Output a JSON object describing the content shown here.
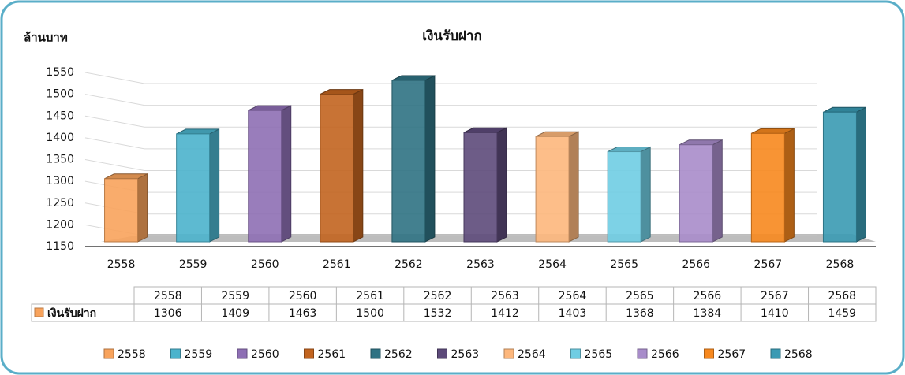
{
  "chart_data": {
    "type": "bar3d",
    "title": "เงินรับฝาก",
    "y_label": "ล้านบาท",
    "categories": [
      "2558",
      "2559",
      "2560",
      "2561",
      "2562",
      "2563",
      "2564",
      "2565",
      "2566",
      "2567",
      "2568"
    ],
    "series": [
      {
        "name": "เงินรับฝาก",
        "values": [
          1306,
          1409,
          1463,
          1500,
          1532,
          1412,
          1403,
          1368,
          1384,
          1410,
          1459
        ]
      }
    ],
    "colors": [
      "#f8a35c",
      "#4bb3cc",
      "#8e6fb4",
      "#c2641f",
      "#2f7283",
      "#5d4a7a",
      "#fdb77c",
      "#6fcde3",
      "#a88cca",
      "#f7881e",
      "#3a9ab3"
    ],
    "ylim": [
      1150,
      1550
    ],
    "yticks": [
      1150,
      1200,
      1250,
      1300,
      1350,
      1400,
      1450,
      1500,
      1550
    ],
    "grid": true
  }
}
